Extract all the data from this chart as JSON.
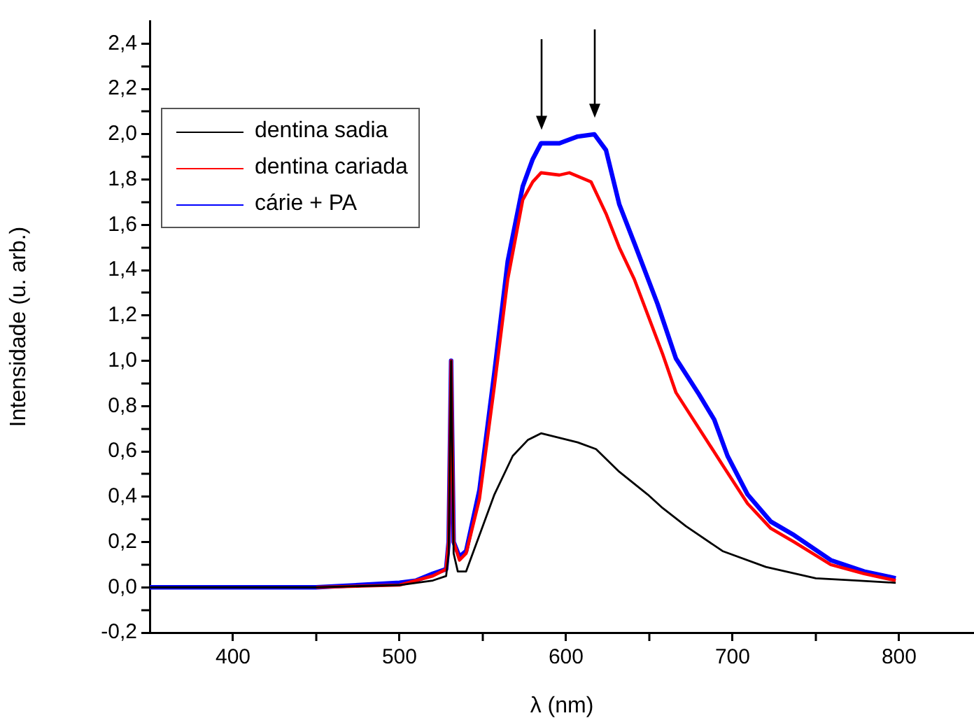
{
  "chart_data": {
    "type": "line",
    "xlabel": "λ (nm)",
    "ylabel": "Intensidade (u. arb.)",
    "xlim": [
      350,
      845
    ],
    "ylim": [
      -0.2,
      2.5
    ],
    "xticks": [
      400,
      {
        "value": 450,
        "label": null
      },
      500,
      {
        "value": 550,
        "label": null
      },
      600,
      {
        "value": 650,
        "label": null
      },
      700,
      {
        "value": 750,
        "label": null
      },
      800
    ],
    "yticks": [
      {
        "value": -0.2,
        "label": "-0,2"
      },
      {
        "value": -0.1,
        "label": null
      },
      {
        "value": 0,
        "label": "0,0"
      },
      {
        "value": 0.1,
        "label": null
      },
      {
        "value": 0.2,
        "label": "0,2"
      },
      {
        "value": 0.3,
        "label": null
      },
      {
        "value": 0.4,
        "label": "0,4"
      },
      {
        "value": 0.5,
        "label": null
      },
      {
        "value": 0.6,
        "label": "0,6"
      },
      {
        "value": 0.7,
        "label": null
      },
      {
        "value": 0.8,
        "label": "0,8"
      },
      {
        "value": 0.9,
        "label": null
      },
      {
        "value": 1.0,
        "label": "1,0"
      },
      {
        "value": 1.1,
        "label": null
      },
      {
        "value": 1.2,
        "label": "1,2"
      },
      {
        "value": 1.3,
        "label": null
      },
      {
        "value": 1.4,
        "label": "1,4"
      },
      {
        "value": 1.5,
        "label": null
      },
      {
        "value": 1.6,
        "label": "1,6"
      },
      {
        "value": 1.7,
        "label": null
      },
      {
        "value": 1.8,
        "label": "1,8"
      },
      {
        "value": 1.9,
        "label": null
      },
      {
        "value": 2.0,
        "label": "2,0"
      },
      {
        "value": 2.1,
        "label": null
      },
      {
        "value": 2.2,
        "label": "2,2"
      },
      {
        "value": 2.3,
        "label": null
      },
      {
        "value": 2.4,
        "label": "2,4"
      }
    ],
    "grid": false,
    "legend": "top left",
    "marker": "none",
    "line_style": "solid",
    "series": [
      {
        "name": "dentina sadia",
        "color": "#000000",
        "x": [
          350,
          400,
          450,
          500,
          510,
          520,
          528,
          529.5,
          531,
          532.5,
          535,
          540,
          548,
          557,
          568,
          577,
          585,
          596,
          607,
          618,
          632,
          649,
          658,
          672,
          694,
          720,
          750,
          775,
          798
        ],
        "values": [
          0,
          0,
          0,
          0.01,
          0.02,
          0.03,
          0.05,
          0.15,
          1.0,
          0.15,
          0.07,
          0.07,
          0.23,
          0.41,
          0.58,
          0.65,
          0.68,
          0.66,
          0.64,
          0.61,
          0.51,
          0.41,
          0.35,
          0.27,
          0.16,
          0.09,
          0.04,
          0.03,
          0.02
        ]
      },
      {
        "name": "dentina cariada",
        "color": "#ff0000",
        "x": [
          450,
          500,
          510,
          520,
          528,
          529.5,
          531,
          532.5,
          536,
          540,
          548,
          557,
          565,
          574,
          580,
          585,
          596,
          602,
          615,
          624,
          632,
          641,
          658,
          666,
          680,
          694,
          709,
          723,
          737,
          759,
          779,
          798
        ],
        "values": [
          0,
          0.01,
          0.03,
          0.05,
          0.08,
          0.2,
          1.0,
          0.2,
          0.12,
          0.15,
          0.39,
          0.89,
          1.36,
          1.71,
          1.79,
          1.83,
          1.82,
          1.83,
          1.79,
          1.65,
          1.5,
          1.36,
          1.03,
          0.86,
          0.7,
          0.54,
          0.37,
          0.26,
          0.2,
          0.1,
          0.06,
          0.03
        ]
      },
      {
        "name": "cárie + PA",
        "color": "#0000ff",
        "x": [
          350,
          400,
          450,
          500,
          510,
          520,
          528,
          529.5,
          531,
          532.5,
          536,
          540,
          548,
          557,
          565,
          574,
          580,
          585,
          596,
          607,
          617,
          624,
          632,
          641,
          655,
          666,
          680,
          689,
          697,
          709,
          723,
          737,
          759,
          779,
          798
        ],
        "values": [
          0,
          0,
          0,
          0.02,
          0.03,
          0.06,
          0.08,
          0.2,
          1.0,
          0.2,
          0.135,
          0.16,
          0.43,
          0.95,
          1.44,
          1.77,
          1.89,
          1.96,
          1.96,
          1.99,
          2.0,
          1.93,
          1.69,
          1.52,
          1.25,
          1.01,
          0.85,
          0.74,
          0.58,
          0.41,
          0.29,
          0.23,
          0.12,
          0.07,
          0.04
        ]
      }
    ]
  }
}
